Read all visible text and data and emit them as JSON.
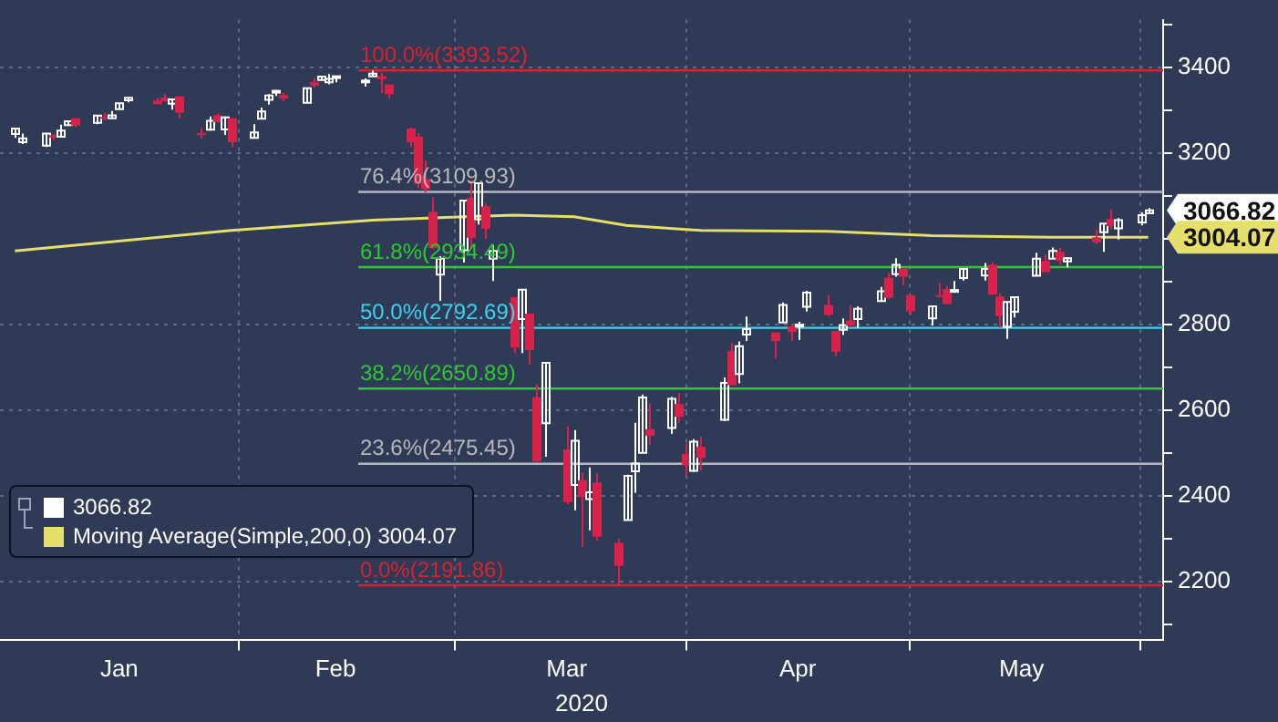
{
  "chart_data": {
    "type": "candlestick",
    "xlabel": "2020",
    "xlim": [
      "2019-12-31",
      "2020-06-04"
    ],
    "xticks": [
      {
        "value": "2020-01-16",
        "label": "Jan"
      },
      {
        "value": "2020-02-01",
        "label": null
      },
      {
        "value": "2020-02-14",
        "label": "Feb"
      },
      {
        "value": "2020-03-01",
        "label": null
      },
      {
        "value": "2020-03-16",
        "label": "Mar"
      },
      {
        "value": "2020-04-01",
        "label": null
      },
      {
        "value": "2020-04-16",
        "label": "Apr"
      },
      {
        "value": "2020-05-01",
        "label": null
      },
      {
        "value": "2020-05-16",
        "label": "May"
      },
      {
        "value": "2020-06-01",
        "label": null
      }
    ],
    "ylim": [
      2065,
      3512
    ],
    "yticks": [
      {
        "value": 2100,
        "label": null
      },
      2200,
      {
        "value": 2300,
        "label": null
      },
      2400,
      {
        "value": 2500,
        "label": null
      },
      2600,
      {
        "value": 2700,
        "label": null
      },
      2800,
      {
        "value": 2900,
        "label": null
      },
      {
        "value": 3000,
        "label": null
      },
      {
        "value": 3100,
        "label": null
      },
      3200,
      {
        "value": 3300,
        "label": null
      },
      3400,
      {
        "value": 3500,
        "label": null
      }
    ],
    "grid": true,
    "legend": "bottom left",
    "ref_lines": [
      {
        "axis": "y",
        "value": 3393.52,
        "label": "100.0%(3393.52)",
        "color": "#d8232f"
      },
      {
        "axis": "y",
        "value": 3109.93,
        "label": "76.4%(3109.93)",
        "color": "#b8b8b8"
      },
      {
        "axis": "y",
        "value": 2934.49,
        "label": "61.8%(2934.49)",
        "color": "#2ec832"
      },
      {
        "axis": "y",
        "value": 2792.69,
        "label": "50.0%(2792.69)",
        "color": "#3cd2ee"
      },
      {
        "axis": "y",
        "value": 2650.89,
        "label": "38.2%(2650.89)",
        "color": "#2ec832"
      },
      {
        "axis": "y",
        "value": 2475.45,
        "label": "23.6%(2475.45)",
        "color": "#b8b8b8"
      },
      {
        "axis": "y",
        "value": 2191.86,
        "label": "0.0%(2191.86)",
        "color": "#d8232f"
      }
    ],
    "annotations": [
      "3066.82",
      "3004.07"
    ],
    "series": [
      {
        "type": "candlestick",
        "name": "3066.82",
        "color": "#ffffff",
        "x": [
          "2020-01-02",
          "2020-01-03",
          "2020-01-06",
          "2020-01-07",
          "2020-01-08",
          "2020-01-09",
          "2020-01-10",
          "2020-01-13",
          "2020-01-14",
          "2020-01-15",
          "2020-01-16",
          "2020-01-17",
          "2020-01-21",
          "2020-01-22",
          "2020-01-23",
          "2020-01-24",
          "2020-01-27",
          "2020-01-28",
          "2020-01-29",
          "2020-01-30",
          "2020-01-31",
          "2020-02-03",
          "2020-02-04",
          "2020-02-05",
          "2020-02-06",
          "2020-02-07",
          "2020-02-10",
          "2020-02-11",
          "2020-02-12",
          "2020-02-13",
          "2020-02-14",
          "2020-02-18",
          "2020-02-19",
          "2020-02-20",
          "2020-02-21",
          "2020-02-24",
          "2020-02-25",
          "2020-02-26",
          "2020-02-27",
          "2020-02-28",
          "2020-03-02",
          "2020-03-03",
          "2020-03-04",
          "2020-03-05",
          "2020-03-06",
          "2020-03-09",
          "2020-03-10",
          "2020-03-11",
          "2020-03-12",
          "2020-03-13",
          "2020-03-16",
          "2020-03-17",
          "2020-03-18",
          "2020-03-19",
          "2020-03-20",
          "2020-03-23",
          "2020-03-24",
          "2020-03-25",
          "2020-03-26",
          "2020-03-27",
          "2020-03-30",
          "2020-03-31",
          "2020-04-01",
          "2020-04-02",
          "2020-04-03",
          "2020-04-06",
          "2020-04-07",
          "2020-04-08",
          "2020-04-09",
          "2020-04-13",
          "2020-04-14",
          "2020-04-15",
          "2020-04-16",
          "2020-04-17",
          "2020-04-20",
          "2020-04-21",
          "2020-04-22",
          "2020-04-23",
          "2020-04-24",
          "2020-04-27",
          "2020-04-28",
          "2020-04-29",
          "2020-04-30",
          "2020-05-01",
          "2020-05-04",
          "2020-05-05",
          "2020-05-06",
          "2020-05-07",
          "2020-05-08",
          "2020-05-11",
          "2020-05-12",
          "2020-05-13",
          "2020-05-14",
          "2020-05-15",
          "2020-05-18",
          "2020-05-19",
          "2020-05-20",
          "2020-05-21",
          "2020-05-22",
          "2020-05-26",
          "2020-05-27",
          "2020-05-28",
          "2020-05-29",
          "2020-06-01",
          "2020-06-02"
        ],
        "ohlc": [
          [
            3245,
            3258,
            3236,
            3258
          ],
          [
            3226,
            3246,
            3222,
            3235
          ],
          [
            3218,
            3247,
            3215,
            3246
          ],
          [
            3242,
            3245,
            3232,
            3237
          ],
          [
            3239,
            3267,
            3237,
            3253
          ],
          [
            3266,
            3276,
            3264,
            3275
          ],
          [
            3282,
            3283,
            3261,
            3265
          ],
          [
            3271,
            3288,
            3268,
            3288
          ],
          [
            3285,
            3294,
            3277,
            3283
          ],
          [
            3282,
            3299,
            3281,
            3289
          ],
          [
            3303,
            3317,
            3303,
            3317
          ],
          [
            3324,
            3330,
            3319,
            3330
          ],
          [
            3321,
            3330,
            3317,
            3321
          ],
          [
            3330,
            3338,
            3320,
            3322
          ],
          [
            3316,
            3327,
            3302,
            3326
          ],
          [
            3333,
            3333,
            3282,
            3295
          ],
          [
            3247,
            3259,
            3235,
            3244
          ],
          [
            3255,
            3286,
            3253,
            3276
          ],
          [
            3289,
            3293,
            3272,
            3273
          ],
          [
            3256,
            3286,
            3243,
            3284
          ],
          [
            3282,
            3282,
            3215,
            3226
          ],
          [
            3236,
            3268,
            3236,
            3249
          ],
          [
            3281,
            3307,
            3281,
            3298
          ],
          [
            3325,
            3338,
            3314,
            3335
          ],
          [
            3345,
            3348,
            3334,
            3346
          ],
          [
            3336,
            3341,
            3322,
            3328
          ],
          [
            3318,
            3352,
            3318,
            3352
          ],
          [
            3366,
            3376,
            3353,
            3358
          ],
          [
            3371,
            3381,
            3370,
            3379
          ],
          [
            3366,
            3385,
            3361,
            3374
          ],
          [
            3378,
            3381,
            3366,
            3380
          ],
          [
            3369,
            3375,
            3356,
            3370
          ],
          [
            3380,
            3393.52,
            3379,
            3386
          ],
          [
            3380,
            3389,
            3341,
            3373
          ],
          [
            3361,
            3361,
            3328,
            3338
          ],
          [
            3258,
            3260,
            3215,
            3226
          ],
          [
            3239,
            3247,
            3119,
            3128
          ],
          [
            3140,
            3183,
            3109,
            3116
          ],
          [
            3063,
            3097,
            2977,
            2979
          ],
          [
            2917,
            2960,
            2856,
            2954
          ],
          [
            2974,
            3091,
            2945,
            3090
          ],
          [
            3096,
            3137,
            2977,
            3003
          ],
          [
            3046,
            3131,
            3034,
            3130
          ],
          [
            3076,
            3083,
            3000,
            3024
          ],
          [
            2954,
            2986,
            2902,
            2972
          ],
          [
            2864,
            2864,
            2734,
            2747
          ],
          [
            2813,
            2883,
            2734,
            2882
          ],
          [
            2826,
            2826,
            2707,
            2741
          ],
          [
            2631,
            2661,
            2479,
            2481
          ],
          [
            2570,
            2711,
            2492,
            2711
          ],
          [
            2509,
            2563,
            2381,
            2386
          ],
          [
            2426,
            2554,
            2367,
            2529
          ],
          [
            2437,
            2454,
            2281,
            2398
          ],
          [
            2393,
            2467,
            2320,
            2409
          ],
          [
            2432,
            2453,
            2296,
            2305
          ],
          [
            2291,
            2301,
            2191.86,
            2237
          ],
          [
            2344,
            2450,
            2344,
            2447
          ],
          [
            2458,
            2571,
            2408,
            2476
          ],
          [
            2501,
            2637,
            2501,
            2630
          ],
          [
            2556,
            2616,
            2520,
            2541
          ],
          [
            2559,
            2632,
            2545,
            2627
          ],
          [
            2615,
            2641,
            2571,
            2585
          ],
          [
            2498,
            2523,
            2447,
            2471
          ],
          [
            2459,
            2533,
            2456,
            2527
          ],
          [
            2515,
            2538,
            2460,
            2489
          ],
          [
            2578,
            2677,
            2575,
            2664
          ],
          [
            2739,
            2757,
            2658,
            2659
          ],
          [
            2685,
            2761,
            2663,
            2750
          ],
          [
            2777,
            2819,
            2762,
            2790
          ],
          [
            2782,
            2782,
            2721,
            2762
          ],
          [
            2805,
            2852,
            2805,
            2846
          ],
          [
            2796,
            2802,
            2762,
            2783
          ],
          [
            2799,
            2807,
            2764,
            2800
          ],
          [
            2842,
            2879,
            2831,
            2875
          ],
          [
            2846,
            2869,
            2820,
            2823
          ],
          [
            2785,
            2786,
            2727,
            2737
          ],
          [
            2788,
            2815,
            2776,
            2799
          ],
          [
            2810,
            2845,
            2794,
            2798
          ],
          [
            2813,
            2843,
            2792,
            2837
          ],
          [
            2855,
            2888,
            2853,
            2878
          ],
          [
            2910,
            2921,
            2861,
            2863
          ],
          [
            2918,
            2955,
            2912,
            2940
          ],
          [
            2931,
            2931,
            2892,
            2912
          ],
          [
            2869,
            2869,
            2822,
            2831
          ],
          [
            2815,
            2844,
            2798,
            2843
          ],
          [
            2869,
            2898,
            2864,
            2868
          ],
          [
            2883,
            2891,
            2848,
            2848
          ],
          [
            2878,
            2902,
            2876,
            2881
          ],
          [
            2909,
            2932,
            2903,
            2930
          ],
          [
            2915,
            2944,
            2903,
            2930
          ],
          [
            2940,
            2946,
            2870,
            2870
          ],
          [
            2866,
            2874,
            2793,
            2820
          ],
          [
            2795,
            2853,
            2767,
            2853
          ],
          [
            2830,
            2865,
            2817,
            2864
          ],
          [
            2914,
            2968,
            2914,
            2954
          ],
          [
            2949,
            2964,
            2922,
            2923
          ],
          [
            2954,
            2980,
            2954,
            2972
          ],
          [
            2970,
            2979,
            2939,
            2949
          ],
          [
            2948,
            2957,
            2934,
            2955
          ],
          [
            3004,
            3022,
            2988,
            2992
          ],
          [
            3016,
            3036,
            2970,
            3036
          ],
          [
            3047,
            3069,
            3023,
            3030
          ],
          [
            3025,
            3049,
            2999,
            3044
          ],
          [
            3039,
            3062,
            3032,
            3056
          ],
          [
            3060,
            3072,
            3058,
            3066.82
          ]
        ],
        "colors": [
          "#ffffff",
          "#ffffff",
          "#ffffff",
          "#d8224a",
          "#ffffff",
          "#ffffff",
          "#d8224a",
          "#ffffff",
          "#d8224a",
          "#ffffff",
          "#ffffff",
          "#ffffff",
          "#d8224a",
          "#d8224a",
          "#ffffff",
          "#d8224a",
          "#d8224a",
          "#ffffff",
          "#d8224a",
          "#ffffff",
          "#d8224a",
          "#ffffff",
          "#ffffff",
          "#ffffff",
          "#ffffff",
          "#d8224a",
          "#ffffff",
          "#d8224a",
          "#ffffff",
          "#ffffff",
          "#ffffff",
          "#ffffff",
          "#ffffff",
          "#d8224a",
          "#d8224a",
          "#d8224a",
          "#d8224a",
          "#d8224a",
          "#d8224a",
          "#ffffff",
          "#ffffff",
          "#d8224a",
          "#ffffff",
          "#d8224a",
          "#ffffff",
          "#d8224a",
          "#ffffff",
          "#d8224a",
          "#d8224a",
          "#ffffff",
          "#d8224a",
          "#ffffff",
          "#d8224a",
          "#ffffff",
          "#d8224a",
          "#d8224a",
          "#ffffff",
          "#ffffff",
          "#ffffff",
          "#d8224a",
          "#ffffff",
          "#d8224a",
          "#d8224a",
          "#ffffff",
          "#d8224a",
          "#ffffff",
          "#d8224a",
          "#ffffff",
          "#ffffff",
          "#d8224a",
          "#ffffff",
          "#d8224a",
          "#ffffff",
          "#ffffff",
          "#d8224a",
          "#d8224a",
          "#ffffff",
          "#d8224a",
          "#ffffff",
          "#ffffff",
          "#d8224a",
          "#ffffff",
          "#d8224a",
          "#d8224a",
          "#ffffff",
          "#d8224a",
          "#d8224a",
          "#ffffff",
          "#ffffff",
          "#ffffff",
          "#d8224a",
          "#d8224a",
          "#ffffff",
          "#ffffff",
          "#ffffff",
          "#d8224a",
          "#ffffff",
          "#d8224a",
          "#ffffff",
          "#d8224a",
          "#ffffff",
          "#d8224a",
          "#ffffff",
          "#ffffff",
          "#ffffff"
        ]
      },
      {
        "type": "line",
        "name": "Moving Average(Simple,200,0) 3004.07",
        "color": "#e6df6a",
        "marker": "none",
        "line_style": "solid",
        "x": [
          "2020-01-02",
          "2020-01-31",
          "2020-02-19",
          "2020-02-28",
          "2020-03-09",
          "2020-03-17",
          "2020-03-24",
          "2020-04-03",
          "2020-04-20",
          "2020-05-04",
          "2020-05-20",
          "2020-06-02"
        ],
        "values": [
          2972,
          3020,
          3044,
          3050,
          3056,
          3052,
          3032,
          3020,
          3018,
          3008,
          3004,
          3004.07
        ]
      }
    ]
  }
}
